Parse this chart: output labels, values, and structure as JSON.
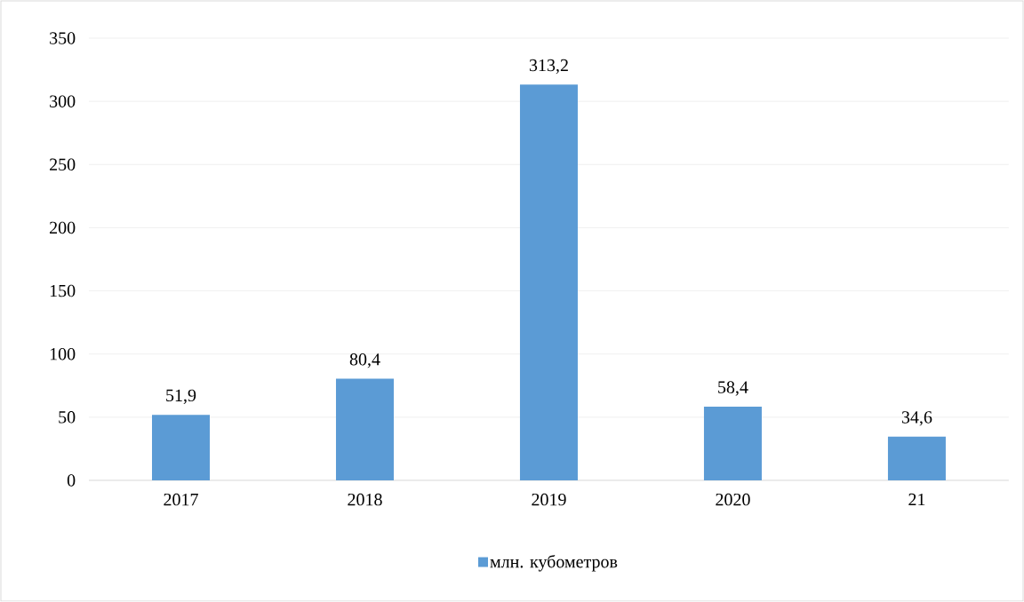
{
  "chart_data": {
    "type": "bar",
    "categories": [
      "2017",
      "2018",
      "2019",
      "2020",
      "21"
    ],
    "series": [
      {
        "name": "млн. кубометров",
        "color": "#5b9bd5",
        "values": [
          51.9,
          80.4,
          313.2,
          58.4,
          34.6
        ],
        "value_labels": [
          "51,9",
          "80,4",
          "313,2",
          "58,4",
          "34,6"
        ]
      }
    ],
    "ylim": [
      0,
      350
    ],
    "yticks": [
      0,
      50,
      100,
      150,
      200,
      250,
      300,
      350
    ],
    "grid": "y",
    "legend": "bottom"
  }
}
